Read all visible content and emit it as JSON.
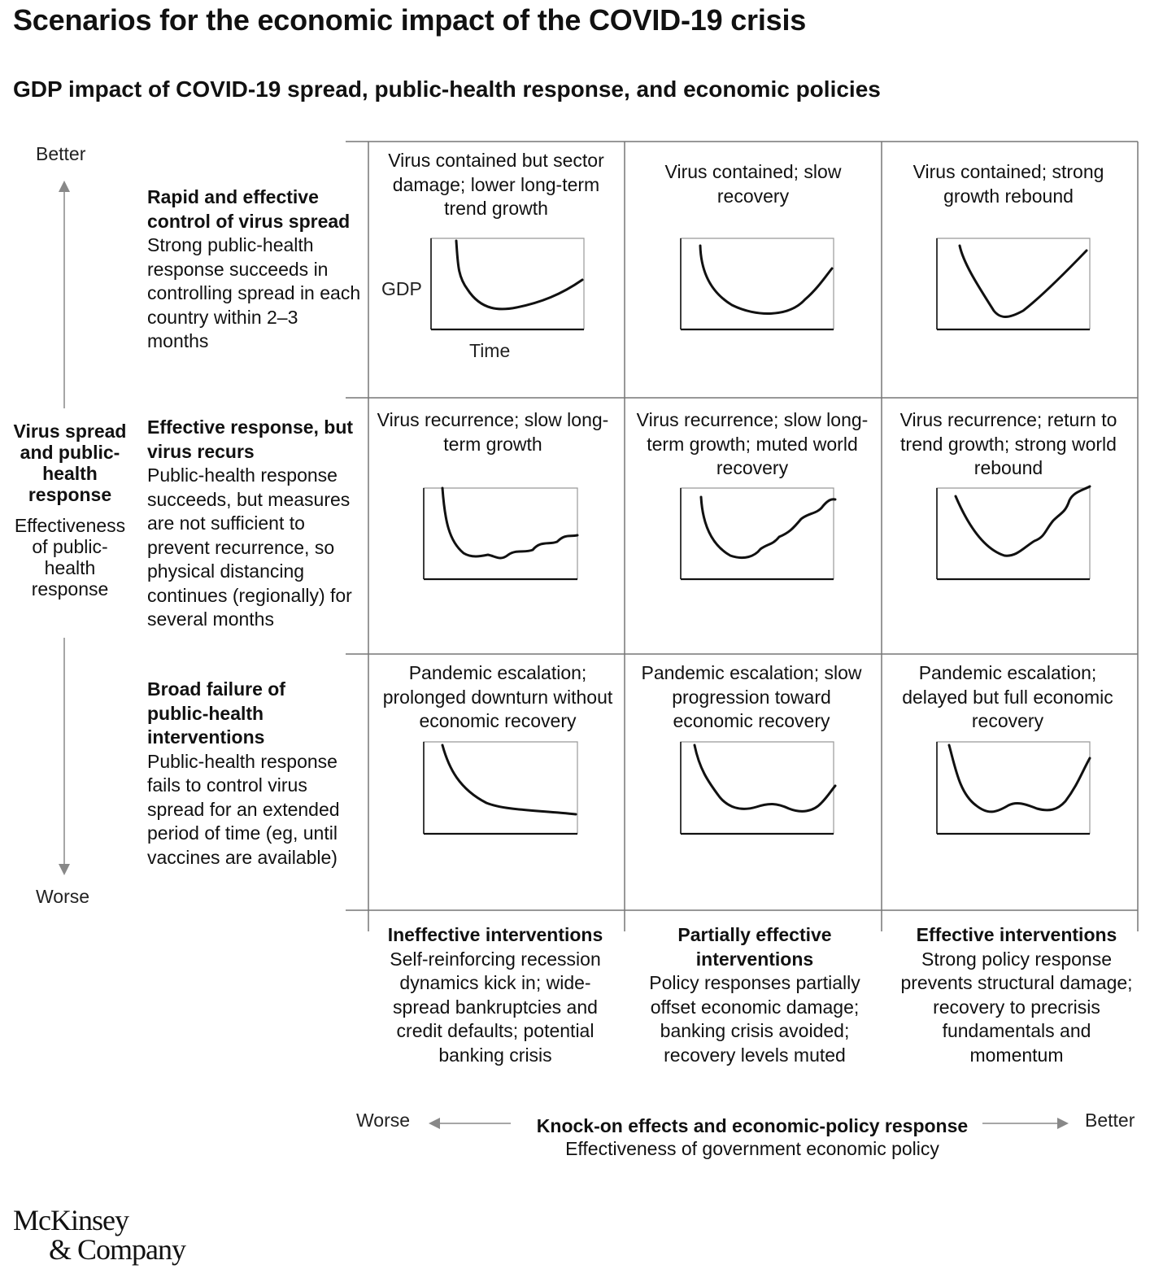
{
  "title": "Scenarios for the economic impact of the COVID-19 crisis",
  "subtitle": "GDP impact of COVID-19 spread, public-health response, and economic policies",
  "vertical_axis": {
    "top": "Better",
    "bottom": "Worse",
    "label_bold": "Virus spread and public-health response",
    "label_sub": "Effectiveness of public-health response"
  },
  "rows": [
    {
      "title": "Rapid and effective control of virus spread",
      "desc": "Strong public-health response succeeds in controlling spread in each country within 2–3 months"
    },
    {
      "title": "Effective response, but virus recurs",
      "desc": "Public-health response succeeds, but measures are not sufficient to prevent recurrence, so physical distancing continues (regionally) for several months"
    },
    {
      "title": "Broad failure of public-health interventions",
      "desc": "Public-health response fails to control virus spread for an extended period of time (eg, until vaccines are available)"
    }
  ],
  "cells": [
    [
      "Virus contained but sector damage; lower long-term trend growth",
      "Virus contained; slow recovery",
      "Virus contained; strong growth rebound"
    ],
    [
      "Virus recurrence; slow long-term growth",
      "Virus recurrence; slow long-term growth; muted world recovery",
      "Virus recurrence; return to trend growth; strong world rebound"
    ],
    [
      "Pandemic escalation; prolonged downturn without economic recovery",
      "Pandemic escalation; slow progression toward economic recovery",
      "Pandemic escalation; delayed but full economic recovery"
    ]
  ],
  "mini_axis": {
    "y": "GDP",
    "x": "Time"
  },
  "columns": [
    {
      "title": "Ineffective interventions",
      "desc": "Self-reinforcing recession dynamics kick in; wide-spread bankruptcies and credit defaults; potential banking crisis"
    },
    {
      "title": "Partially effective interventions",
      "desc": "Policy responses partially offset economic damage; banking crisis avoided; recovery levels muted"
    },
    {
      "title": "Effective interventions",
      "desc": "Strong policy response prevents structural damage; recovery to precrisis fundamentals and momentum"
    }
  ],
  "horizontal_axis": {
    "left": "Worse",
    "right": "Better",
    "label_bold": "Knock-on effects and economic-policy response",
    "label_sub": "Effectiveness of government economic policy"
  },
  "logo": {
    "line1": "McKinsey",
    "line2": "& Company"
  }
}
